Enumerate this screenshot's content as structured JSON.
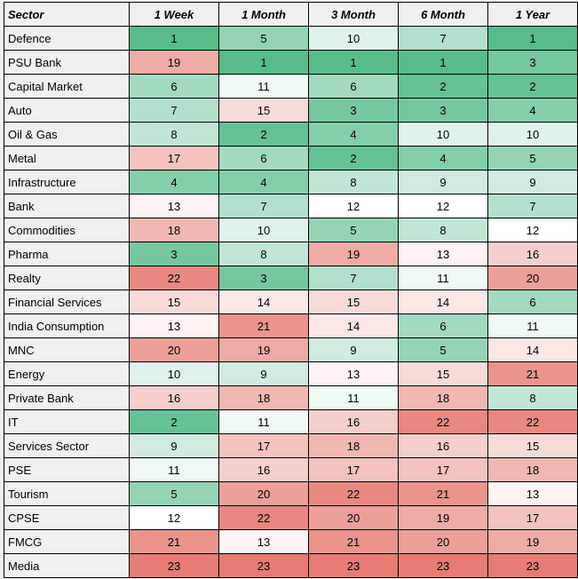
{
  "chart_data": {
    "type": "heatmap",
    "title": "",
    "row_header": "Sector",
    "columns": [
      "1 Week",
      "1 Month",
      "3 Month",
      "6 Month",
      "1 Year"
    ],
    "scale": {
      "min": 1,
      "mid": 12,
      "max": 23,
      "min_color": "#57bb8a",
      "mid_color": "#ffffff",
      "max_color": "#e67c73"
    },
    "rows": [
      {
        "sector": "Defence",
        "values": [
          1,
          5,
          10,
          7,
          1
        ]
      },
      {
        "sector": "PSU Bank",
        "values": [
          19,
          1,
          1,
          1,
          3
        ]
      },
      {
        "sector": "Capital Market",
        "values": [
          6,
          11,
          6,
          2,
          2
        ]
      },
      {
        "sector": "Auto",
        "values": [
          7,
          15,
          3,
          3,
          4
        ]
      },
      {
        "sector": "Oil & Gas",
        "values": [
          8,
          2,
          4,
          10,
          10
        ]
      },
      {
        "sector": "Metal",
        "values": [
          17,
          6,
          2,
          4,
          5
        ]
      },
      {
        "sector": "Infrastructure",
        "values": [
          4,
          4,
          8,
          9,
          9
        ]
      },
      {
        "sector": "Bank",
        "values": [
          13,
          7,
          12,
          12,
          7
        ]
      },
      {
        "sector": "Commodities",
        "values": [
          18,
          10,
          5,
          8,
          12
        ]
      },
      {
        "sector": "Pharma",
        "values": [
          3,
          8,
          19,
          13,
          16
        ]
      },
      {
        "sector": "Realty",
        "values": [
          22,
          3,
          7,
          11,
          20
        ]
      },
      {
        "sector": "Financial Services",
        "values": [
          15,
          14,
          15,
          14,
          6
        ]
      },
      {
        "sector": "India Consumption",
        "values": [
          13,
          21,
          14,
          6,
          11
        ]
      },
      {
        "sector": "MNC",
        "values": [
          20,
          19,
          9,
          5,
          14
        ]
      },
      {
        "sector": "Energy",
        "values": [
          10,
          9,
          13,
          15,
          21
        ]
      },
      {
        "sector": "Private Bank",
        "values": [
          16,
          18,
          11,
          18,
          8
        ]
      },
      {
        "sector": "IT",
        "values": [
          2,
          11,
          16,
          22,
          22
        ]
      },
      {
        "sector": "Services Sector",
        "values": [
          9,
          17,
          18,
          16,
          15
        ]
      },
      {
        "sector": "PSE",
        "values": [
          11,
          16,
          17,
          17,
          18
        ]
      },
      {
        "sector": "Tourism",
        "values": [
          5,
          20,
          22,
          21,
          13
        ]
      },
      {
        "sector": "CPSE",
        "values": [
          12,
          22,
          20,
          19,
          17
        ]
      },
      {
        "sector": "FMCG",
        "values": [
          21,
          13,
          21,
          20,
          19
        ]
      },
      {
        "sector": "Media",
        "values": [
          23,
          23,
          23,
          23,
          23
        ]
      }
    ]
  }
}
